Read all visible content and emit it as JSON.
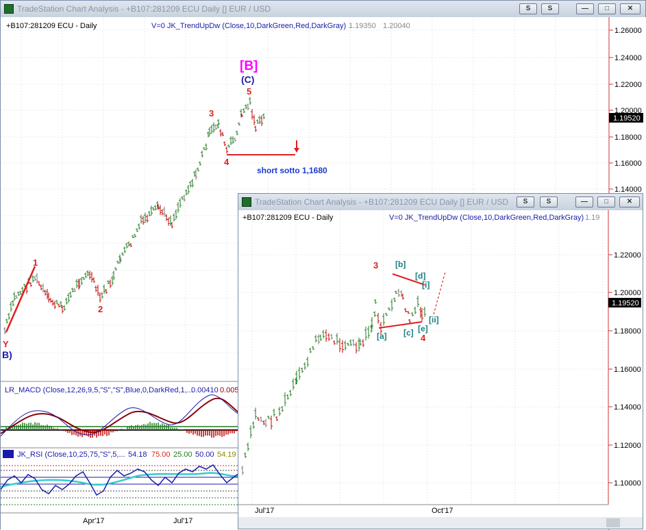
{
  "main_window": {
    "title": "TradeStation Chart Analysis - +B107:281209 ECU Daily [] EUR / USD",
    "symbol_label": "+B107:281209 ECU - Daily",
    "indicator_label": "V=0  JK_TrendUpDw (Close,10,DarkGreen,Red,DarkGray)",
    "indicator_values": [
      "1.19350",
      "1.20040"
    ],
    "buttons": {
      "s1": "S",
      "s2": "S",
      "minimize": "—",
      "restore": "□",
      "close": "✕"
    },
    "price_scale": [
      "1.26000",
      "1.24000",
      "1.22000",
      "1.20000",
      "1.18000",
      "1.16000",
      "1.14000"
    ],
    "current_price": "1.19520",
    "date_labels": [
      "Apr'17",
      "Jul'17"
    ],
    "wave_labels": {
      "big_b": "[B]",
      "c": "(C)",
      "w5": "5",
      "w3": "3",
      "w4": "4",
      "w1": "1",
      "w2": "2",
      "y": "Y",
      "b_paren": "B)"
    },
    "annotation": "short sotto 1,1680",
    "macd": {
      "label": "LR_MACD (Close,12,26,9,5,\"S\",\"S\",Blue,0,DarkRed,1,...",
      "values": [
        "0.00410",
        "0.005"
      ]
    },
    "rsi": {
      "label": "JK_RSI (Close,10,25,75,\"S\",5,...",
      "values": [
        "54.18",
        "75.00",
        "25.00",
        "50.00",
        "54.19"
      ]
    }
  },
  "inset_window": {
    "title": "TradeStation Chart Analysis - +B107:281209 ECU Daily [] EUR / USD",
    "symbol_label": "+B107:281209 ECU - Daily",
    "indicator_label": "V=0  JK_TrendUpDw (Close,10,DarkGreen,Red,DarkGray)",
    "indicator_value": "1.19",
    "buttons": {
      "s1": "S",
      "s2": "S",
      "minimize": "—",
      "restore": "□",
      "close": "✕"
    },
    "price_scale": [
      "1.22000",
      "1.20000",
      "1.18000",
      "1.16000",
      "1.14000",
      "1.12000",
      "1.10000"
    ],
    "current_price": "1.19520",
    "date_labels": [
      "Jul'17",
      "Oct'17"
    ],
    "wave_labels": {
      "w3": "3",
      "b": "[b]",
      "d": "[d]",
      "i": "[i]",
      "ii": "[ii]",
      "a": "[a]",
      "c": "[c]",
      "e": "[e]",
      "w4": "4"
    }
  },
  "colors": {
    "up_bar": "#1f7a1f",
    "down_bar": "#c00000",
    "neutral_bar": "#777777",
    "wave_red": "#e02020",
    "wave_blue": "#1a1aaa",
    "wave_teal": "#1c8080",
    "wave_magenta": "#ff00ff",
    "axis_red": "#cc3333",
    "annotation_blue": "#1a3ad0"
  }
}
